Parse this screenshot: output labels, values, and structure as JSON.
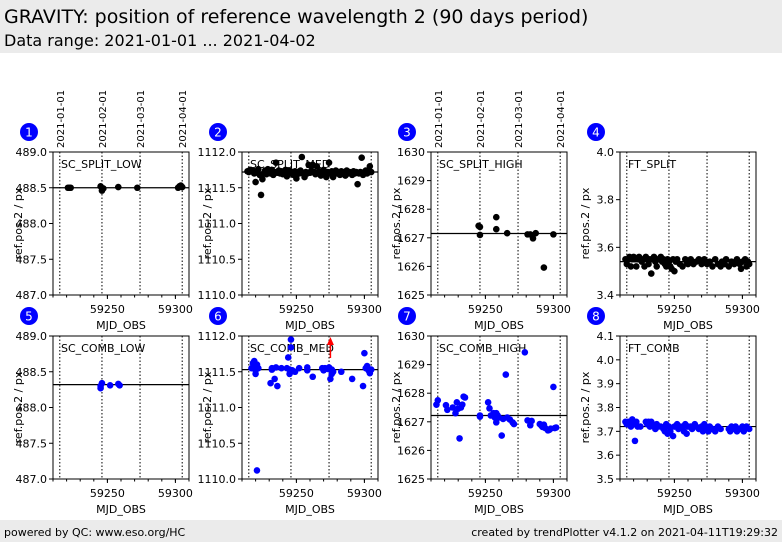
{
  "header": {
    "title": "GRAVITY: position of reference wavelength 2 (90 days period)",
    "subtitle": "Data range: 2021-01-01 ... 2021-04-02"
  },
  "footer": {
    "left": "powered by QC: www.eso.org/HC",
    "right": "created by trendPlotter v4.1.2 on 2021-04-11T19:29:32"
  },
  "colors": {
    "split_points": "#000000",
    "comb_points": "#0000ff",
    "badge": "#0000ff",
    "outlier_arrow": "#ff0000",
    "header_bg": "#ebebeb"
  },
  "date_labels": {
    "labels": [
      "2021-01-01",
      "2021-02-01",
      "2021-03-01",
      "2021-04-01"
    ],
    "mjd": [
      59215,
      59246,
      59274,
      59305
    ]
  },
  "chart_data": [
    {
      "type": "scatter",
      "id": 1,
      "label": "SC_SPLIT_LOW",
      "series_color": "split",
      "xlabel": "MJD_OBS",
      "ylabel": "ref.pos.2 / px",
      "xlim": [
        59210,
        59310
      ],
      "xticks": [
        59250,
        59300
      ],
      "ylim": [
        487.0,
        489.0
      ],
      "yticks": [
        "487.0",
        "487.5",
        "488.0",
        "488.5",
        "489.0"
      ],
      "reference_line": 488.5,
      "show_date_labels": true,
      "x": [
        59221,
        59222,
        59223,
        59245,
        59246,
        59247,
        59258,
        59272,
        59302,
        59303,
        59304,
        59305
      ],
      "y": [
        488.5,
        488.5,
        488.5,
        488.52,
        488.46,
        488.49,
        488.51,
        488.5,
        488.5,
        488.52,
        488.53,
        488.51
      ]
    },
    {
      "type": "scatter",
      "id": 2,
      "label": "SC_SPLIT_MED",
      "series_color": "split",
      "xlabel": "MJD_OBS",
      "ylabel": "ref.pos.2 / px",
      "xlim": [
        59210,
        59310
      ],
      "xticks": [
        59250,
        59300
      ],
      "ylim": [
        1110.0,
        1112.0
      ],
      "yticks": [
        "1110.0",
        "1110.5",
        "1111.0",
        "1111.5",
        "1112.0"
      ],
      "reference_line": 1111.72,
      "show_date_labels": false,
      "x": [
        59214,
        59215,
        59216,
        59218,
        59219,
        59220,
        59221,
        59222,
        59223,
        59224,
        59225,
        59226,
        59227,
        59228,
        59229,
        59230,
        59231,
        59232,
        59233,
        59234,
        59235,
        59236,
        59237,
        59238,
        59239,
        59240,
        59241,
        59242,
        59243,
        59244,
        59245,
        59246,
        59247,
        59248,
        59249,
        59250,
        59251,
        59252,
        59253,
        59254,
        59255,
        59256,
        59257,
        59258,
        59259,
        59260,
        59261,
        59262,
        59263,
        59264,
        59265,
        59266,
        59267,
        59268,
        59269,
        59270,
        59271,
        59272,
        59273,
        59274,
        59275,
        59276,
        59277,
        59278,
        59279,
        59280,
        59281,
        59282,
        59283,
        59284,
        59285,
        59286,
        59287,
        59288,
        59289,
        59290,
        59291,
        59292,
        59293,
        59294,
        59295,
        59296,
        59297,
        59298,
        59299,
        59300,
        59301,
        59302,
        59303,
        59304,
        59305
      ],
      "y": [
        1111.73,
        1111.72,
        1111.75,
        1111.74,
        1111.7,
        1111.58,
        1111.72,
        1111.76,
        1111.68,
        1111.4,
        1111.62,
        1111.7,
        1111.74,
        1111.69,
        1111.76,
        1111.72,
        1111.7,
        1111.75,
        1111.68,
        1111.72,
        1111.85,
        1111.71,
        1111.74,
        1111.7,
        1111.73,
        1111.69,
        1111.72,
        1111.75,
        1111.66,
        1111.71,
        1111.74,
        1111.7,
        1111.72,
        1111.68,
        1111.73,
        1111.63,
        1111.72,
        1111.7,
        1111.74,
        1111.93,
        1111.7,
        1111.65,
        1111.72,
        1111.7,
        1111.82,
        1111.71,
        1111.74,
        1111.82,
        1111.72,
        1111.69,
        1111.8,
        1111.7,
        1111.73,
        1111.67,
        1111.72,
        1111.75,
        1111.7,
        1111.65,
        1111.72,
        1111.85,
        1111.7,
        1111.73,
        1111.65,
        1111.71,
        1111.74,
        1111.7,
        1111.72,
        1111.68,
        1111.73,
        1111.7,
        1111.72,
        1111.67,
        1111.74,
        1111.7,
        1111.72,
        1111.71,
        1111.68,
        1111.73,
        1111.7,
        1111.72,
        1111.55,
        1111.7,
        1111.72,
        1111.92,
        1111.68,
        1111.72,
        1111.74,
        1111.7,
        1111.73,
        1111.8,
        1111.72
      ]
    },
    {
      "type": "scatter",
      "id": 3,
      "label": "SC_SPLIT_HIGH",
      "series_color": "split",
      "xlabel": "MJD_OBS",
      "ylabel": "ref.pos.2 / px",
      "xlim": [
        59210,
        59310
      ],
      "xticks": [
        59250,
        59300
      ],
      "ylim": [
        1625,
        1630
      ],
      "yticks": [
        "1625",
        "1626",
        "1627",
        "1628",
        "1629",
        "1630"
      ],
      "reference_line": 1627.15,
      "show_date_labels": true,
      "x": [
        59245,
        59246,
        59246,
        59258,
        59258,
        59266,
        59281,
        59283,
        59285,
        59287,
        59293,
        59300
      ],
      "y": [
        1627.42,
        1627.38,
        1627.1,
        1627.72,
        1627.3,
        1627.16,
        1627.12,
        1627.12,
        1626.98,
        1627.16,
        1625.96,
        1627.12
      ]
    },
    {
      "type": "scatter",
      "id": 4,
      "label": "FT_SPLIT",
      "series_color": "split",
      "xlabel": "MJD_OBS",
      "ylabel": "ref.pos.2 / px",
      "xlim": [
        59210,
        59310
      ],
      "xticks": [
        59250,
        59300
      ],
      "ylim": [
        3.4,
        4.0
      ],
      "yticks": [
        "3.4",
        "3.6",
        "3.8",
        "4.0"
      ],
      "reference_line": 3.54,
      "show_date_labels": false,
      "x": [
        59214,
        59215,
        59216,
        59217,
        59218,
        59219,
        59220,
        59221,
        59222,
        59223,
        59224,
        59226,
        59227,
        59228,
        59229,
        59230,
        59231,
        59232,
        59233,
        59234,
        59235,
        59236,
        59237,
        59238,
        59240,
        59241,
        59242,
        59243,
        59244,
        59245,
        59246,
        59247,
        59248,
        59249,
        59250,
        59251,
        59252,
        59254,
        59256,
        59258,
        59259,
        59260,
        59262,
        59263,
        59264,
        59266,
        59268,
        59270,
        59272,
        59273,
        59274,
        59276,
        59278,
        59280,
        59282,
        59284,
        59285,
        59287,
        59288,
        59290,
        59292,
        59294,
        59296,
        59298,
        59299,
        59300,
        59302,
        59303,
        59304,
        59305
      ],
      "y": [
        3.55,
        3.53,
        3.55,
        3.56,
        3.52,
        3.55,
        3.56,
        3.55,
        3.52,
        3.55,
        3.56,
        3.54,
        3.55,
        3.52,
        3.56,
        3.55,
        3.53,
        3.55,
        3.49,
        3.55,
        3.56,
        3.54,
        3.52,
        3.55,
        3.56,
        3.54,
        3.55,
        3.53,
        3.52,
        3.55,
        3.54,
        3.52,
        3.51,
        3.55,
        3.5,
        3.54,
        3.55,
        3.53,
        3.52,
        3.55,
        3.54,
        3.53,
        3.55,
        3.54,
        3.53,
        3.54,
        3.55,
        3.53,
        3.55,
        3.54,
        3.53,
        3.54,
        3.52,
        3.55,
        3.53,
        3.52,
        3.54,
        3.53,
        3.55,
        3.52,
        3.54,
        3.53,
        3.55,
        3.53,
        3.51,
        3.54,
        3.55,
        3.52,
        3.54,
        3.53
      ]
    },
    {
      "type": "scatter",
      "id": 5,
      "label": "SC_COMB_LOW",
      "series_color": "comb",
      "xlabel": "MJD_OBS",
      "ylabel": "ref.pos.2 / px",
      "xlim": [
        59210,
        59310
      ],
      "xticks": [
        59250,
        59300
      ],
      "ylim": [
        487.0,
        489.0
      ],
      "yticks": [
        "487.0",
        "487.5",
        "488.0",
        "488.5",
        "489.0"
      ],
      "reference_line": 488.32,
      "show_date_labels": false,
      "x": [
        59245,
        59245,
        59246,
        59252,
        59258,
        59259
      ],
      "y": [
        488.27,
        488.3,
        488.34,
        488.31,
        488.33,
        488.31
      ]
    },
    {
      "type": "scatter",
      "id": 6,
      "label": "SC_COMB_MED",
      "series_color": "comb",
      "xlabel": "MJD_OBS",
      "ylabel": "ref.pos.2 / px",
      "xlim": [
        59210,
        59310
      ],
      "xticks": [
        59250,
        59300
      ],
      "ylim": [
        1110.0,
        1112.0
      ],
      "yticks": [
        "1110.0",
        "1110.5",
        "1111.0",
        "1111.5",
        "1112.0"
      ],
      "reference_line": 1111.53,
      "show_date_labels": false,
      "outlier_arrow_x": 59275,
      "x": [
        59217,
        59218,
        59219,
        59219,
        59220,
        59220,
        59221,
        59221,
        59222,
        59231,
        59232,
        59232,
        59234,
        59235,
        59236,
        59239,
        59243,
        59244,
        59245,
        59245,
        59246,
        59246,
        59247,
        59249,
        59252,
        59258,
        59258,
        59262,
        59269,
        59270,
        59271,
        59273,
        59274,
        59275,
        59276,
        59276,
        59277,
        59283,
        59291,
        59299,
        59300,
        59301,
        59302,
        59303,
        59304,
        59305
      ],
      "y": [
        1111.55,
        1111.62,
        1111.65,
        1111.57,
        1111.52,
        1111.47,
        1110.12,
        1111.6,
        1111.55,
        1111.34,
        1111.55,
        1111.53,
        1111.4,
        1111.56,
        1111.3,
        1111.55,
        1111.55,
        1111.7,
        1111.53,
        1111.47,
        1111.95,
        1111.84,
        1111.52,
        1111.5,
        1111.55,
        1111.56,
        1111.52,
        1111.43,
        1111.55,
        1111.52,
        1111.55,
        1111.54,
        1111.56,
        1111.4,
        1111.53,
        1111.47,
        1111.5,
        1111.5,
        1111.4,
        1111.3,
        1111.76,
        1111.55,
        1111.58,
        1111.52,
        1111.48,
        1111.53
      ]
    },
    {
      "type": "scatter",
      "id": 7,
      "label": "SC_COMB_HIGH",
      "series_color": "comb",
      "xlabel": "MJD_OBS",
      "ylabel": "ref.pos.2 / px",
      "xlim": [
        59210,
        59310
      ],
      "xticks": [
        59250,
        59300
      ],
      "ylim": [
        1625,
        1630
      ],
      "yticks": [
        "1625",
        "1626",
        "1627",
        "1628",
        "1629",
        "1630"
      ],
      "reference_line": 1627.22,
      "show_date_labels": false,
      "x": [
        59214,
        59215,
        59221,
        59222,
        59226,
        59228,
        59229,
        59230,
        59231,
        59232,
        59233,
        59234,
        59235,
        59246,
        59246,
        59252,
        59253,
        59254,
        59256,
        59257,
        59258,
        59258,
        59259,
        59260,
        59262,
        59263,
        59265,
        59266,
        59268,
        59270,
        59271,
        59279,
        59281,
        59283,
        59284,
        59290,
        59291,
        59292,
        59293,
        59294,
        59296,
        59297,
        59298,
        59300,
        59301,
        59302
      ],
      "y": [
        1627.6,
        1627.75,
        1627.58,
        1627.42,
        1627.5,
        1627.3,
        1627.68,
        1627.46,
        1626.42,
        1627.5,
        1627.6,
        1627.88,
        1627.85,
        1627.22,
        1627.18,
        1627.68,
        1627.47,
        1627.22,
        1627.3,
        1627.15,
        1627.3,
        1626.98,
        1627.22,
        1627.15,
        1626.52,
        1627.1,
        1628.65,
        1627.15,
        1627.08,
        1626.98,
        1626.92,
        1629.43,
        1627.05,
        1626.88,
        1627.03,
        1626.92,
        1626.88,
        1626.82,
        1626.9,
        1626.78,
        1626.7,
        1626.72,
        1626.76,
        1628.22,
        1626.78,
        1626.8
      ]
    },
    {
      "type": "scatter",
      "id": 8,
      "label": "FT_COMB",
      "series_color": "comb",
      "xlabel": "MJD_OBS",
      "ylabel": "ref.pos.2 / px",
      "xlim": [
        59210,
        59310
      ],
      "xticks": [
        59250,
        59300
      ],
      "ylim": [
        3.5,
        4.1
      ],
      "yticks": [
        "3.5",
        "3.6",
        "3.7",
        "3.8",
        "3.9",
        "4.0",
        "4.1"
      ],
      "reference_line": 3.72,
      "show_date_labels": false,
      "x": [
        59214,
        59215,
        59216,
        59218,
        59219,
        59220,
        59221,
        59222,
        59223,
        59225,
        59229,
        59230,
        59231,
        59232,
        59233,
        59234,
        59235,
        59236,
        59237,
        59238,
        59240,
        59242,
        59243,
        59244,
        59245,
        59246,
        59247,
        59249,
        59250,
        59252,
        59253,
        59254,
        59256,
        59257,
        59258,
        59259,
        59260,
        59262,
        59263,
        59265,
        59266,
        59268,
        59270,
        59271,
        59272,
        59273,
        59275,
        59276,
        59278,
        59280,
        59282,
        59284,
        59290,
        59291,
        59292,
        59294,
        59295,
        59296,
        59298,
        59300,
        59301,
        59302,
        59303,
        59305
      ],
      "y": [
        3.74,
        3.73,
        3.74,
        3.72,
        3.75,
        3.73,
        3.66,
        3.74,
        3.72,
        3.72,
        3.74,
        3.73,
        3.74,
        3.72,
        3.74,
        3.73,
        3.72,
        3.71,
        3.73,
        3.72,
        3.72,
        3.71,
        3.7,
        3.73,
        3.69,
        3.72,
        3.7,
        3.68,
        3.72,
        3.73,
        3.71,
        3.72,
        3.72,
        3.7,
        3.73,
        3.69,
        3.72,
        3.72,
        3.71,
        3.73,
        3.72,
        3.71,
        3.72,
        3.7,
        3.73,
        3.72,
        3.7,
        3.72,
        3.71,
        3.7,
        3.72,
        3.71,
        3.71,
        3.7,
        3.72,
        3.71,
        3.72,
        3.7,
        3.71,
        3.72,
        3.7,
        3.71,
        3.72,
        3.71
      ]
    }
  ]
}
